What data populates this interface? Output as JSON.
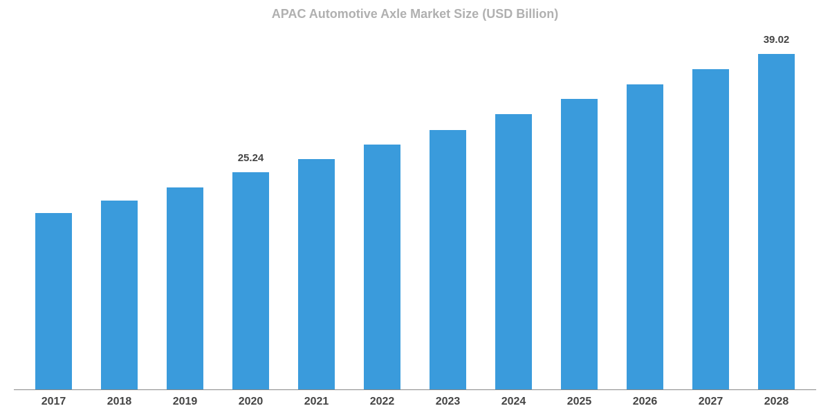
{
  "chart": {
    "type": "bar",
    "title": "APAC Automotive Axle Market Size (USD Billion)",
    "title_fontsize": 18,
    "title_color": "#b0b0b0",
    "categories": [
      "2017",
      "2018",
      "2019",
      "2020",
      "2021",
      "2022",
      "2023",
      "2024",
      "2025",
      "2026",
      "2027",
      "2028"
    ],
    "values": [
      20.5,
      22.0,
      23.5,
      25.24,
      26.8,
      28.5,
      30.2,
      32.0,
      33.8,
      35.5,
      37.3,
      39.02
    ],
    "bar_color": "#3a9bdc",
    "bar_width": 0.55,
    "background_color": "#ffffff",
    "axis_color": "#888888",
    "label_color": "#444444",
    "label_fontsize": 16,
    "value_label_fontsize": 15,
    "ylim": [
      0,
      40
    ],
    "show_labels_for": {
      "2020": "25.24",
      "2028": "39.02"
    }
  }
}
